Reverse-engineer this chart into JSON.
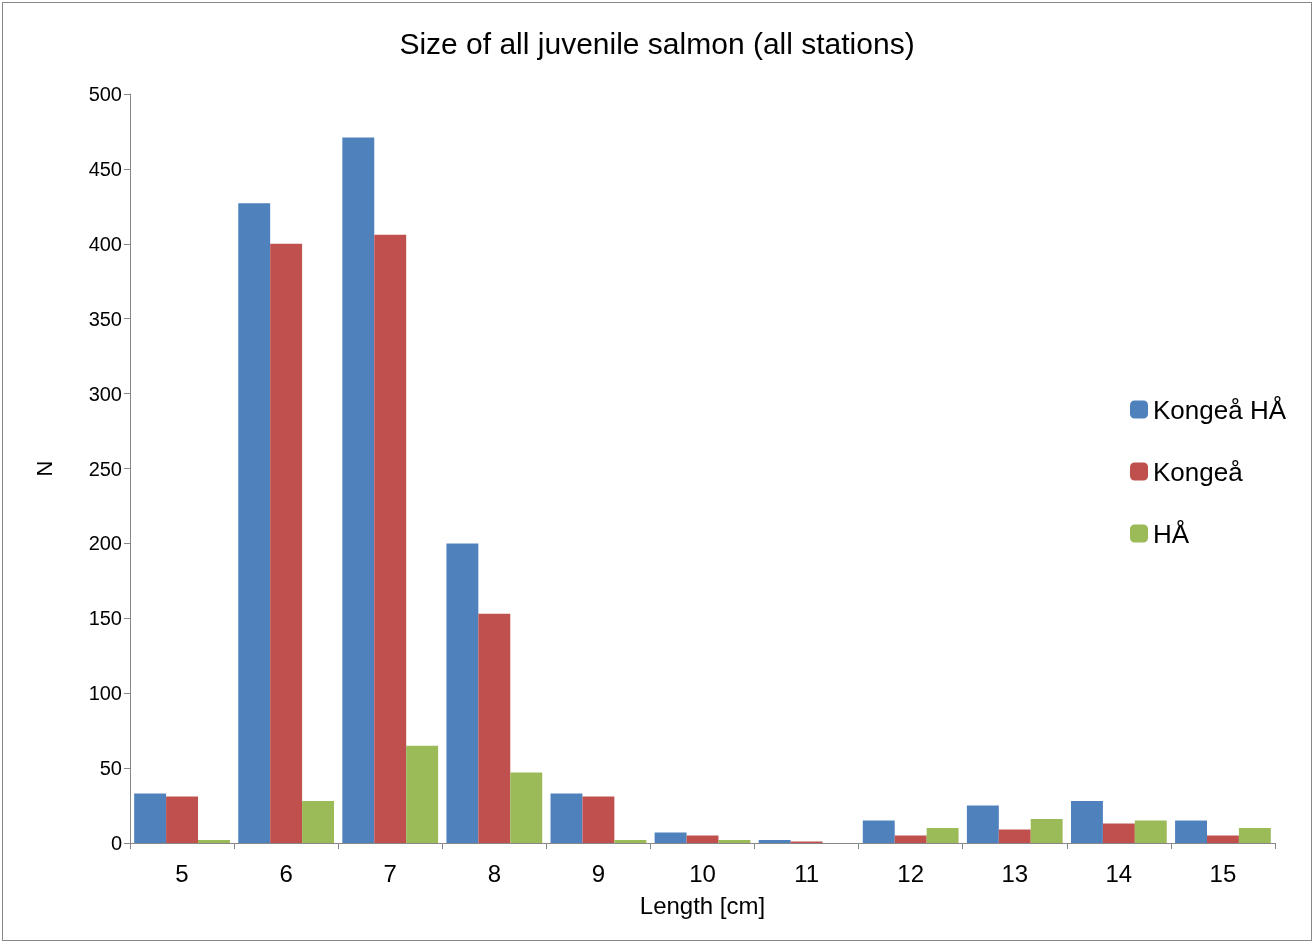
{
  "chart_data": {
    "type": "bar",
    "title": "Size of all juvenile salmon (all stations)",
    "xlabel": "Length [cm]",
    "ylabel": "N",
    "categories": [
      "5",
      "6",
      "7",
      "8",
      "9",
      "10",
      "11",
      "12",
      "13",
      "14",
      "15"
    ],
    "series": [
      {
        "name": "Kongeå HÅ",
        "color": "#4f81bd",
        "values": [
          33,
          427,
          471,
          200,
          33,
          7,
          2,
          15,
          25,
          28,
          15
        ]
      },
      {
        "name": "Kongeå",
        "color": "#c0504d",
        "values": [
          31,
          400,
          406,
          153,
          31,
          5,
          1,
          5,
          9,
          13,
          5
        ]
      },
      {
        "name": "HÅ",
        "color": "#9bbb59",
        "values": [
          2,
          28,
          65,
          47,
          2,
          2,
          0,
          10,
          16,
          15,
          10
        ]
      }
    ],
    "ylim": [
      0,
      500
    ],
    "yticks": [
      0,
      50,
      100,
      150,
      200,
      250,
      300,
      350,
      400,
      450,
      500
    ],
    "grid": false,
    "legend": "right"
  }
}
